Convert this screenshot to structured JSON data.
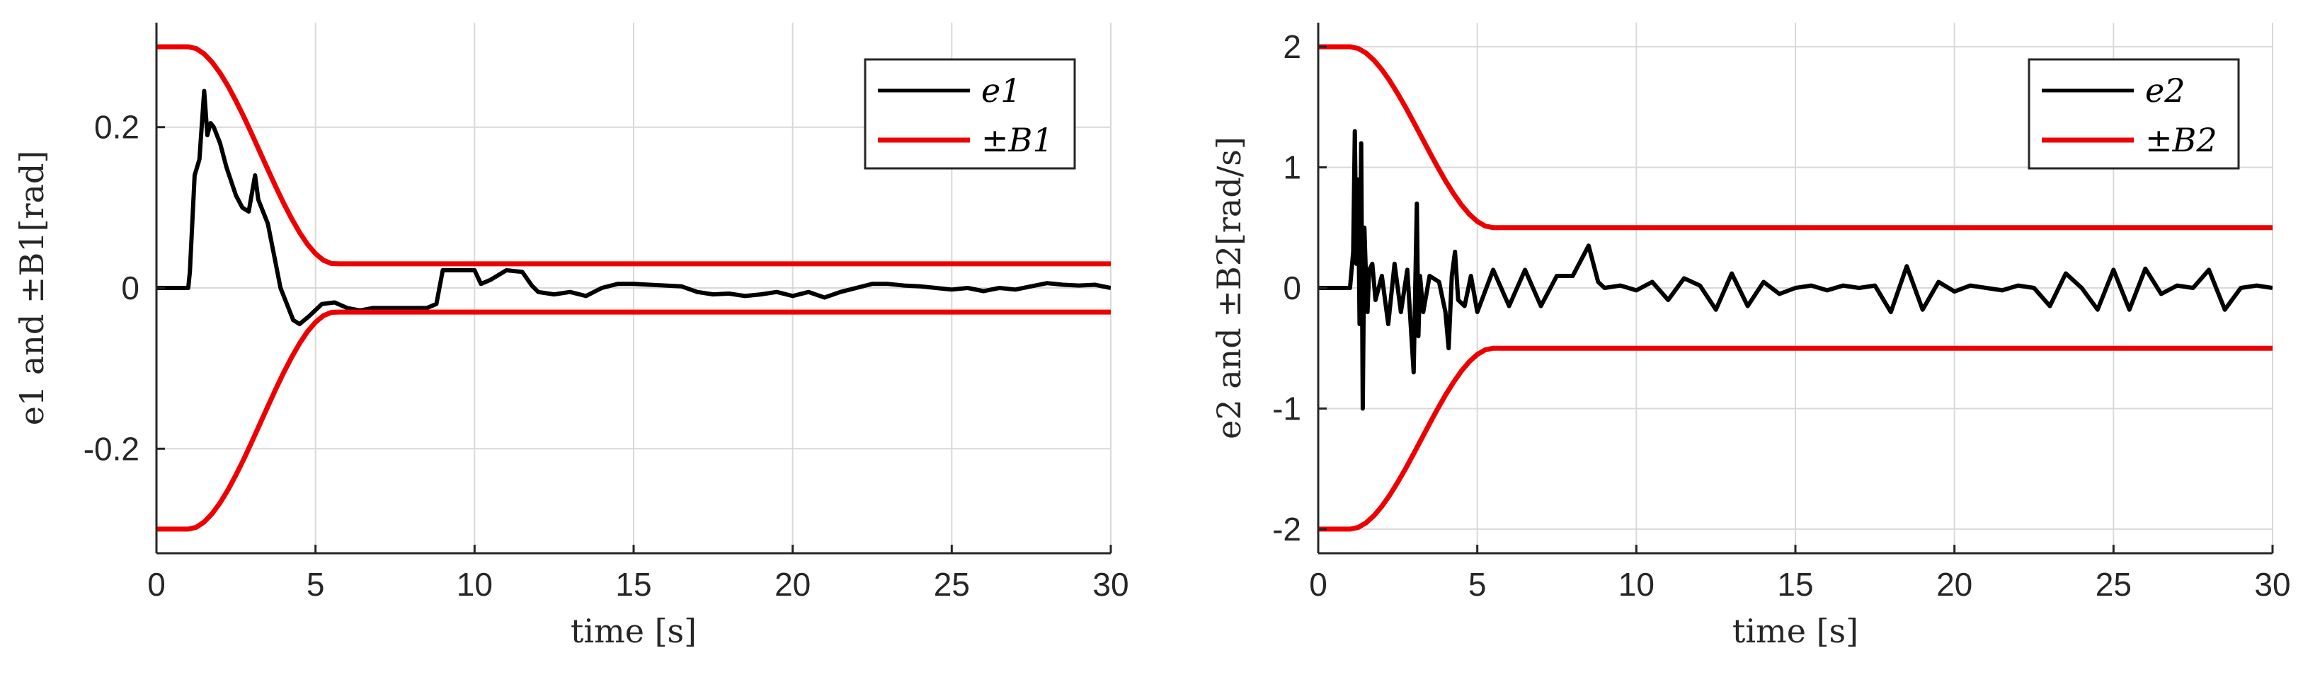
{
  "chart_data": [
    {
      "type": "line",
      "xlabel": "time [s]",
      "ylabel": "e1 and ±B1[rad]",
      "xlim": [
        0,
        30
      ],
      "ylim": [
        -0.33,
        0.33
      ],
      "xticks": [
        0,
        5,
        10,
        15,
        20,
        25,
        30
      ],
      "xtick_labels": [
        "0",
        "5",
        "10",
        "15",
        "20",
        "25",
        "30"
      ],
      "yticks": [
        -0.2,
        0,
        0.2
      ],
      "ytick_labels": [
        "-0.2",
        "0",
        "0.2"
      ],
      "grid": true,
      "legend_position": "top-right",
      "series": [
        {
          "name": "e1",
          "color": "#000000",
          "x": [
            0,
            1.0,
            1.05,
            1.2,
            1.35,
            1.5,
            1.6,
            1.7,
            1.8,
            2.0,
            2.2,
            2.5,
            2.7,
            2.9,
            3.1,
            3.2,
            3.3,
            3.5,
            3.7,
            3.9,
            4.1,
            4.3,
            4.5,
            4.8,
            5.2,
            5.6,
            6.0,
            6.4,
            6.8,
            7.5,
            8.0,
            8.5,
            8.8,
            9.0,
            9.5,
            10.0,
            10.2,
            10.5,
            11.0,
            11.5,
            11.8,
            12.0,
            12.5,
            13.0,
            13.5,
            14.0,
            14.5,
            15.0,
            15.5,
            16.0,
            16.5,
            17.0,
            17.5,
            18.0,
            18.5,
            19.0,
            19.5,
            20.0,
            20.5,
            21.0,
            21.5,
            22.0,
            22.5,
            23.0,
            23.5,
            24.0,
            24.5,
            25.0,
            25.5,
            26.0,
            26.5,
            27.0,
            27.5,
            28.0,
            28.5,
            29.0,
            29.5,
            30.0
          ],
          "y": [
            0,
            0,
            0.02,
            0.14,
            0.16,
            0.245,
            0.19,
            0.205,
            0.2,
            0.18,
            0.15,
            0.115,
            0.1,
            0.095,
            0.14,
            0.11,
            0.1,
            0.08,
            0.04,
            0.0,
            -0.02,
            -0.04,
            -0.045,
            -0.035,
            -0.02,
            -0.018,
            -0.025,
            -0.028,
            -0.025,
            -0.025,
            -0.025,
            -0.025,
            -0.02,
            0.022,
            0.022,
            0.022,
            0.005,
            0.01,
            0.022,
            0.02,
            0.003,
            -0.005,
            -0.008,
            -0.005,
            -0.01,
            0.0,
            0.005,
            0.005,
            0.004,
            0.003,
            0.002,
            -0.005,
            -0.008,
            -0.007,
            -0.01,
            -0.008,
            -0.005,
            -0.01,
            -0.005,
            -0.012,
            -0.005,
            0.0,
            0.005,
            0.005,
            0.003,
            0.002,
            0.0,
            -0.002,
            0.0,
            -0.004,
            0.0,
            -0.002,
            0.002,
            0.006,
            0.004,
            0.003,
            0.004,
            0.0
          ]
        },
        {
          "name": "±B1",
          "color": "#ee0000",
          "envelope": {
            "start": 0.3,
            "end": 0.03,
            "t_start": 1.0,
            "t_end": 5.6
          }
        }
      ]
    },
    {
      "type": "line",
      "xlabel": "time [s]",
      "ylabel": "e2 and ±B2[rad/s]",
      "xlim": [
        0,
        30
      ],
      "ylim": [
        -2.2,
        2.2
      ],
      "xticks": [
        0,
        5,
        10,
        15,
        20,
        25,
        30
      ],
      "xtick_labels": [
        "0",
        "5",
        "10",
        "15",
        "20",
        "25",
        "30"
      ],
      "yticks": [
        -2,
        -1,
        0,
        1,
        2
      ],
      "ytick_labels": [
        "-2",
        "-1",
        "0",
        "1",
        "2"
      ],
      "grid": true,
      "legend_position": "top-right",
      "series": [
        {
          "name": "e2",
          "color": "#000000",
          "x": [
            0,
            1.0,
            1.1,
            1.15,
            1.2,
            1.25,
            1.3,
            1.35,
            1.4,
            1.45,
            1.5,
            1.55,
            1.6,
            1.7,
            1.8,
            2.0,
            2.2,
            2.4,
            2.6,
            2.8,
            3.0,
            3.1,
            3.15,
            3.2,
            3.3,
            3.5,
            3.8,
            4.0,
            4.1,
            4.2,
            4.3,
            4.4,
            4.6,
            4.8,
            5.0,
            5.5,
            6.0,
            6.5,
            7.0,
            7.5,
            8.0,
            8.5,
            8.8,
            9.0,
            9.5,
            10.0,
            10.5,
            11.0,
            11.5,
            12.0,
            12.5,
            13.0,
            13.5,
            14.0,
            14.5,
            15.0,
            15.5,
            16.0,
            16.5,
            17.0,
            17.5,
            18.0,
            18.5,
            19.0,
            19.5,
            20.0,
            20.5,
            21.0,
            21.5,
            22.0,
            22.5,
            23.0,
            23.5,
            24.0,
            24.5,
            25.0,
            25.5,
            26.0,
            26.5,
            27.0,
            27.5,
            28.0,
            28.5,
            29.0,
            29.5,
            30.0
          ],
          "y": [
            0,
            0,
            0.3,
            1.3,
            0.2,
            0.9,
            -0.3,
            1.2,
            -1.0,
            0.5,
            0.1,
            -0.2,
            0.15,
            0.2,
            -0.1,
            0.1,
            -0.3,
            0.2,
            -0.2,
            0.15,
            -0.7,
            0.7,
            -0.4,
            0.1,
            -0.2,
            0.1,
            0.05,
            -0.2,
            -0.5,
            0.1,
            0.3,
            -0.1,
            -0.15,
            0.1,
            -0.2,
            0.15,
            -0.15,
            0.15,
            -0.15,
            0.1,
            0.1,
            0.35,
            0.05,
            0.0,
            0.02,
            -0.02,
            0.05,
            -0.1,
            0.08,
            0.02,
            -0.18,
            0.12,
            -0.15,
            0.05,
            -0.05,
            0.0,
            0.02,
            -0.02,
            0.02,
            0.0,
            0.02,
            -0.2,
            0.18,
            -0.18,
            0.05,
            -0.03,
            0.02,
            0.0,
            -0.02,
            0.02,
            0.0,
            -0.15,
            0.12,
            0.0,
            -0.18,
            0.15,
            -0.18,
            0.16,
            -0.05,
            0.02,
            0.0,
            0.15,
            -0.18,
            0.0,
            0.02,
            0.0
          ]
        },
        {
          "name": "±B2",
          "color": "#ee0000",
          "envelope": {
            "start": 2.0,
            "end": 0.5,
            "t_start": 1.0,
            "t_end": 5.5
          }
        }
      ]
    }
  ]
}
